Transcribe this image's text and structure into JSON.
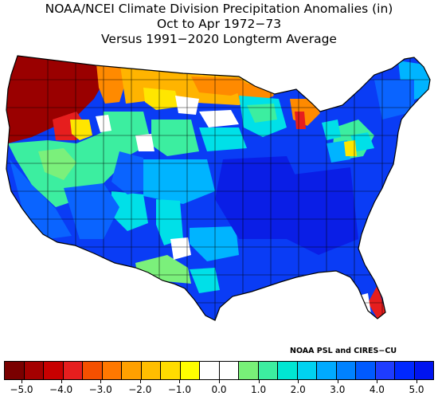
{
  "title": {
    "line1": "NOAA/NCEI Climate Division Precipitation Anomalies (in)",
    "line2": "Oct to Apr 1972−73",
    "line3": "Versus 1991−2020 Longterm Average"
  },
  "credit": "NOAA PSL and CIRES−CU",
  "legend": {
    "colors": [
      "#7a0000",
      "#a40000",
      "#c80000",
      "#e61e1e",
      "#f55000",
      "#ff7800",
      "#ffa000",
      "#ffbe00",
      "#ffdc00",
      "#ffff00",
      "#ffffff",
      "#ffffff",
      "#78f078",
      "#3ceea0",
      "#00e6d2",
      "#00d2f0",
      "#00aaff",
      "#0082ff",
      "#005aff",
      "#1e3cff",
      "#0028ff",
      "#0014f0"
    ],
    "ticks": [
      "−5.0",
      "−4.0",
      "−3.0",
      "−2.0",
      "−1.0",
      "0.0",
      "1.0",
      "2.0",
      "3.0",
      "4.0",
      "5.0"
    ]
  },
  "map": {
    "palette": {
      "darkred": "#9a0000",
      "red": "#e61e1e",
      "orange": "#ff8a00",
      "lightorange": "#ffb400",
      "yellow": "#ffe600",
      "white": "#ffffff",
      "lightgreen": "#7bf07b",
      "green": "#3ceea0",
      "cyan": "#00e0e8",
      "skyblue": "#00b4ff",
      "blue": "#0a64ff",
      "darkblue": "#0a3cf5",
      "navy": "#0a1ee6"
    }
  }
}
